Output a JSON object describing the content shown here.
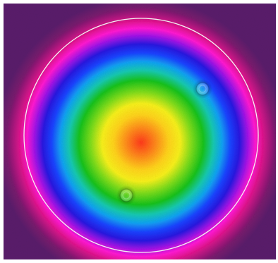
{
  "image": {
    "subject": "beam-intensity-profile",
    "colormap": [
      "#ff3a1a",
      "#ff7a1a",
      "#ffd21a",
      "#f7f01a",
      "#7fdc1a",
      "#18c21a",
      "#13c9b0",
      "#12a2f2",
      "#1a42ff",
      "#2818e0",
      "#a312e6",
      "#ff1ad1",
      "#e0128e",
      "#7a1a6e",
      "#5a1e6b"
    ],
    "background_color": "#5a1e6b",
    "aperture_circle_color": "#f2f2f2"
  }
}
